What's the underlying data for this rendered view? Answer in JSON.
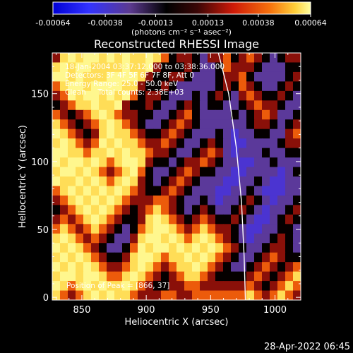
{
  "colorbar": {
    "ticks": [
      "-0.00064",
      "-0.00038",
      "-0.00013",
      "0.00013",
      "0.00038",
      "0.00064"
    ],
    "tick_values": [
      -0.00064,
      -0.00038,
      -0.00013,
      0.00013,
      0.00038,
      0.00064
    ],
    "units_label": "(photons cm⁻² s⁻¹ asec⁻²)",
    "range": [
      -0.00064,
      0.00064
    ]
  },
  "plot": {
    "title": "Reconstructed RHESSI Image",
    "info_lines": [
      "18-Jan-2004 03:37:12.000 to 03:38:36.000",
      "Detectors: 3F 4F 5F 6F 7F 8F, Att 0",
      "Energy Range: 25.0 - 50.0 keV",
      "Clean     Total counts: 2.38E+03"
    ],
    "peak_label": "Position of Peak = [866, 37]",
    "timestamp": "28-Apr-2022 06:45"
  },
  "chart_data": {
    "type": "heatmap",
    "title": "Reconstructed RHESSI Image",
    "xlabel": "Heliocentric X (arcsec)",
    "ylabel": "Heliocentric Y (arcsec)",
    "xlim": [
      827,
      1020
    ],
    "ylim": [
      -2,
      180
    ],
    "x_ticks": [
      850,
      900,
      950,
      1000
    ],
    "y_ticks": [
      0,
      50,
      100,
      150
    ],
    "x_tick_labels": [
      "850",
      "900",
      "950",
      "1000"
    ],
    "y_tick_labels": [
      "0",
      "50",
      "100",
      "150"
    ],
    "peak_position": [
      866,
      37
    ],
    "limb_line": [
      [
        956,
        180
      ],
      [
        964,
        150
      ],
      [
        970,
        110
      ],
      [
        974,
        70
      ],
      [
        976,
        30
      ],
      [
        977,
        -2
      ]
    ],
    "colormap": [
      "#0000d6",
      "#3333ff",
      "#5a35b5",
      "#5c3a8f",
      "#000000",
      "#5c0a0a",
      "#cf1a08",
      "#f5700c",
      "#ffd03a",
      "#ffffa0"
    ],
    "intensity_levels": [
      "0.60 0.92 0.98 0.92 0.98 0.98 0.92 0.98 0.92 0.98 0.92 0.92 0.98 0.92 0.75 0.45 0.60 0.60 0.45 0.30 0.60 0.60 0.75 0.45 0.60 0.75 0.60 0.45 0.30 0.45 0.60 0.60",
      "0.92 0.98 0.92 0.98 0.98 0.92 0.92 0.92 0.92 0.98 0.92 0.92 0.98 0.60 0.45 0.45 0.45 0.60 0.45 0.30 0.30 0.45 0.75 0.60 0.60 0.60 0.45 0.30 0.30 0.30 0.45 0.45",
      "0.98 0.98 0.92 0.98 0.92 0.92 0.92 0.98 0.98 0.98 0.98 0.92 0.60 0.45 0.45 0.60 0.60 0.45 0.30 0.30 0.30 0.45 0.60 0.60 0.75 0.45 0.30 0.30 0.30 0.30 0.45 0.60",
      "0.75 0.92 0.98 0.98 0.92 0.98 0.98 0.98 0.98 0.92 0.92 0.60 0.45 0.45 0.60 0.45 0.30 0.30 0.30 0.30 0.30 0.45 0.60 0.45 0.75 0.60 0.45 0.30 0.30 0.45 0.60 0.45",
      "0.60 0.75 0.98 0.92 0.98 0.98 0.92 0.98 0.92 0.98 0.75 0.45 0.60 0.60 0.45 0.30 0.30 0.30 0.45 0.30 0.45 0.60 0.45 0.30 0.60 0.75 0.60 0.45 0.45 0.60 0.45 0.30",
      "0.45 0.60 0.75 0.92 0.92 0.98 0.92 0.92 0.98 0.60 0.45 0.45 0.60 0.45 0.30 0.30 0.45 0.60 0.45 0.30 0.45 0.45 0.30 0.30 0.45 0.60 0.75 0.60 0.60 0.45 0.30 0.30",
      "0.75 0.60 0.45 0.60 0.75 0.92 0.98 0.92 0.75 0.60 0.60 0.45 0.45 0.30 0.30 0.45 0.60 0.75 0.45 0.30 0.30 0.30 0.30 0.45 0.30 0.45 0.60 0.75 0.60 0.30 0.30 0.45",
      "0.92 0.75 0.60 0.45 0.60 0.75 0.92 0.98 0.92 0.75 0.60 0.45 0.30 0.30 0.45 0.60 0.75 0.60 0.45 0.30 0.30 0.30 0.30 0.30 0.30 0.45 0.60 0.60 0.45 0.30 0.45 0.60",
      "0.98 0.92 0.75 0.60 0.45 0.60 0.92 0.98 0.92 0.92 0.75 0.60 0.45 0.45 0.60 0.75 0.60 0.45 0.30 0.30 0.30 0.45 0.30 0.18 0.30 0.30 0.45 0.45 0.30 0.30 0.60 0.75",
      "0.92 0.98 0.92 0.75 0.60 0.75 0.98 0.92 0.98 0.92 0.92 0.75 0.60 0.60 0.75 0.60 0.45 0.30 0.30 0.45 0.60 0.45 0.30 0.18 0.18 0.30 0.30 0.30 0.30 0.45 0.60 0.60",
      "0.98 0.98 0.92 0.92 0.75 0.92 0.92 0.98 0.92 0.98 0.92 0.92 0.75 0.60 0.60 0.45 0.30 0.30 0.45 0.60 0.75 0.60 0.30 0.18 0.30 0.30 0.30 0.45 0.30 0.30 0.45 0.45",
      "0.98 0.92 0.98 0.98 0.92 0.98 0.92 0.75 0.92 0.98 0.98 0.92 0.60 0.45 0.45 0.30 0.45 0.60 0.60 0.75 0.60 0.45 0.30 0.30 0.18 0.18 0.30 0.30 0.45 0.30 0.30 0.30",
      "0.92 0.98 0.98 0.92 0.98 0.92 0.75 0.60 0.75 0.92 0.98 0.75 0.45 0.30 0.30 0.45 0.60 0.75 0.60 0.45 0.45 0.30 0.30 0.18 0.18 0.30 0.30 0.30 0.30 0.18 0.30 0.45",
      "0.98 0.92 0.92 0.98 0.92 0.98 0.92 0.75 0.92 0.98 0.92 0.60 0.45 0.30 0.45 0.60 0.75 0.60 0.45 0.30 0.30 0.30 0.18 0.18 0.30 0.30 0.45 0.30 0.18 0.18 0.30 0.30",
      "0.75 0.92 0.98 0.92 0.98 0.92 0.98 0.92 0.98 0.92 0.75 0.60 0.45 0.45 0.60 0.75 0.60 0.45 0.30 0.30 0.30 0.18 0.18 0.30 0.30 0.45 0.30 0.18 0.18 0.18 0.30 0.30",
      "0.60 0.75 0.92 0.98 0.92 0.98 0.92 0.98 0.92 0.75 0.60 0.60 0.60 0.75 0.75 0.60 0.45 0.30 0.30 0.45 0.30 0.18 0.30 0.30 0.45 0.60 0.45 0.30 0.18 0.30 0.30 0.45",
      "0.45 0.60 0.75 0.92 0.98 0.92 0.98 0.92 0.75 0.60 0.45 0.60 0.75 0.92 0.75 0.60 0.45 0.30 0.45 0.60 0.45 0.30 0.30 0.45 0.60 0.45 0.30 0.18 0.30 0.30 0.45 0.60",
      "0.60 0.75 0.60 0.75 0.92 0.98 0.92 0.75 0.60 0.45 0.45 0.60 0.92 0.98 0.92 0.75 0.60 0.45 0.60 0.75 0.60 0.45 0.45 0.60 0.45 0.30 0.18 0.18 0.30 0.45 0.60 0.45",
      "0.75 0.92 0.75 0.60 0.75 0.92 0.75 0.60 0.45 0.30 0.45 0.75 0.92 0.98 0.98 0.92 0.75 0.60 0.75 0.92 0.75 0.60 0.60 0.45 0.30 0.18 0.18 0.30 0.30 0.45 0.45 0.30",
      "0.92 0.98 0.92 0.75 0.60 0.75 0.60 0.45 0.30 0.30 0.60 0.92 0.98 0.98 0.92 0.98 0.92 0.75 0.92 0.98 0.92 0.75 0.60 0.45 0.30 0.18 0.30 0.30 0.45 0.60 0.45 0.30",
      "0.98 0.92 0.98 0.92 0.75 0.60 0.45 0.30 0.30 0.45 0.75 0.98 0.92 0.98 0.98 0.92 0.98 0.92 0.98 0.92 0.98 0.92 0.75 0.60 0.45 0.30 0.30 0.45 0.60 0.60 0.45 0.30",
      "0.92 0.98 0.92 0.98 0.92 0.75 0.60 0.45 0.45 0.60 0.92 0.98 0.98 0.92 0.75 0.92 0.92 0.98 0.92 0.98 0.92 0.75 0.60 0.45 0.30 0.30 0.45 0.60 0.75 0.60 0.45 0.45",
      "0.98 0.92 0.98 0.92 0.98 0.92 0.75 0.60 0.60 0.75 0.92 0.98 0.92 0.75 0.60 0.75 0.92 0.92 0.98 0.92 0.75 0.60 0.45 0.30 0.30 0.45 0.60 0.75 0.60 0.45 0.60 0.75",
      "0.92 0.98 0.98 0.92 0.98 0.98 0.92 0.75 0.75 0.92 0.98 0.92 0.75 0.60 0.45 0.60 0.75 0.92 0.92 0.75 0.60 0.45 0.45 0.45 0.45 0.60 0.75 0.60 0.45 0.60 0.75 0.92",
      "0.98 0.92 0.75 0.92 0.98 0.92 0.98 0.92 0.92 0.98 0.92 0.75 0.60 0.45 0.45 0.60 0.60 0.75 0.75 0.60 0.60 0.60 0.60 0.60 0.60 0.75 0.60 0.45 0.60 0.75 0.92 0.75",
      "0.92 0.75 0.60 0.75 0.92 0.98 0.92 0.98 0.92 0.92 0.75 0.60 0.60 0.60 0.75 0.75 0.60 0.60 0.75 0.75 0.75 0.75 0.75 0.75 0.75 0.92 0.75 0.60 0.75 0.92 0.75 0.60"
    ]
  }
}
